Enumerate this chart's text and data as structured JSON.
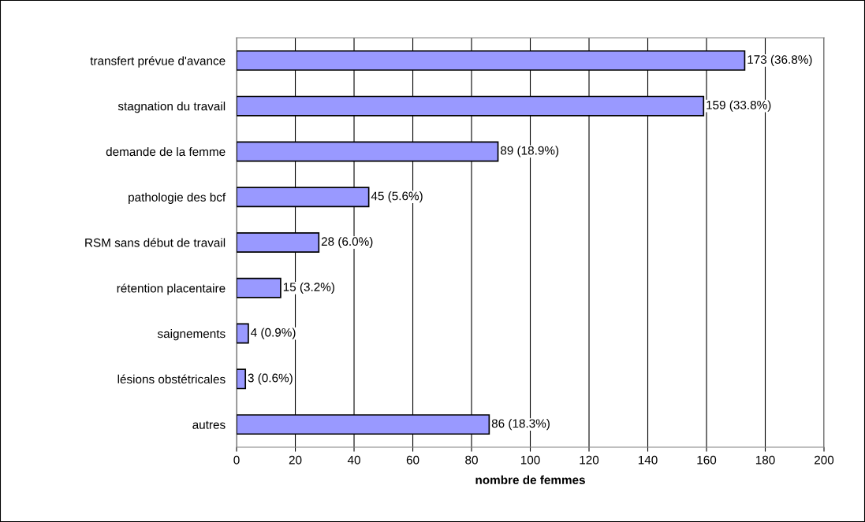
{
  "chart_data": {
    "type": "bar",
    "orientation": "horizontal",
    "xlabel": "nombre de femmes",
    "categories": [
      "transfert prévue d'avance",
      "stagnation du travail",
      "demande de la femme",
      "pathologie des bcf",
      "RSM sans début de travail",
      "rétention placentaire",
      "saignements",
      "lésions obstétricales",
      "autres"
    ],
    "values": [
      173,
      159,
      89,
      45,
      28,
      15,
      4,
      3,
      86
    ],
    "value_labels": [
      "173 (36.8%)",
      "159 (33.8%)",
      "89 (18.9%)",
      "45 (5.6%)",
      "28 (6.0%)",
      "15 (3.2%)",
      "4 (0.9%)",
      "3 (0.6%)",
      "86 (18.3%)"
    ],
    "color": "#9999ff",
    "xlim": [
      0,
      200
    ],
    "xticks": [
      0,
      20,
      40,
      60,
      80,
      100,
      120,
      140,
      160,
      180,
      200
    ],
    "grid": "x"
  }
}
